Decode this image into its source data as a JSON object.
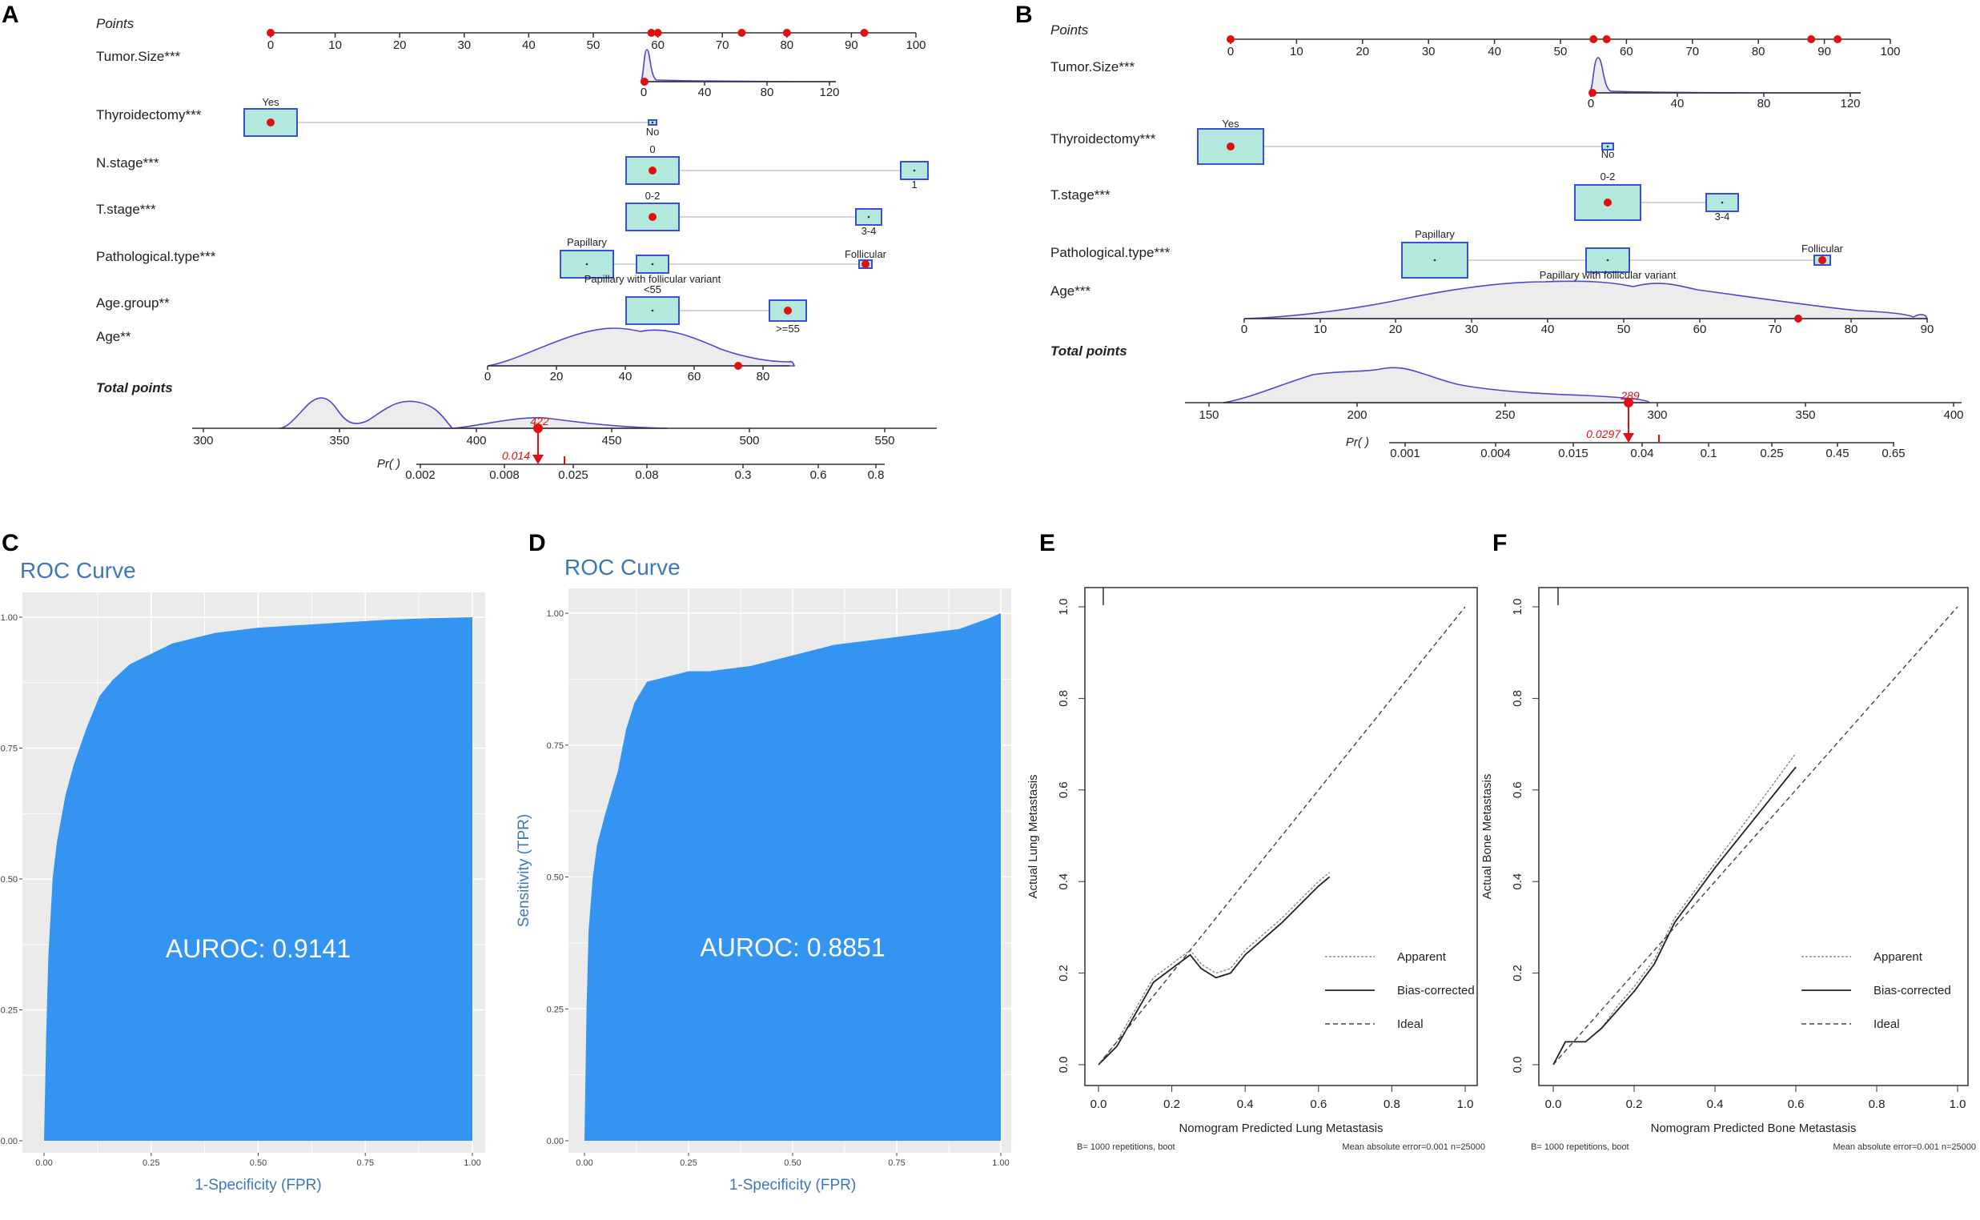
{
  "panels": {
    "A": "A",
    "B": "B",
    "C": "C",
    "D": "D",
    "E": "E",
    "F": "F"
  },
  "chart_data": [
    {
      "panel": "A",
      "type": "nomogram",
      "points_label": "Points",
      "points_ticks": [
        0,
        10,
        20,
        30,
        40,
        50,
        60,
        70,
        80,
        90,
        100
      ],
      "points_markers": [
        0,
        59,
        60,
        73,
        80,
        92
      ],
      "variables": [
        {
          "label": "Tumor.Size***",
          "kind": "continuous",
          "ticks": [
            "0",
            "40",
            "80",
            "120"
          ],
          "marker": "0"
        },
        {
          "label": "Thyroidectomy***",
          "kind": "categorical",
          "levels": [
            "Yes",
            "No"
          ],
          "selected": "Yes"
        },
        {
          "label": "N.stage***",
          "kind": "categorical",
          "levels": [
            "0",
            "1"
          ],
          "selected": "0"
        },
        {
          "label": "T.stage***",
          "kind": "categorical",
          "levels": [
            "0-2",
            "3-4"
          ],
          "selected": "0-2"
        },
        {
          "label": "Pathological.type***",
          "kind": "categorical",
          "levels": [
            "Papillary",
            "Papillary with follicular variant",
            "Follicular"
          ],
          "selected": "Follicular"
        },
        {
          "label": "Age.group**",
          "kind": "categorical",
          "levels": [
            "<55",
            ">=55"
          ],
          "selected": ">=55"
        },
        {
          "label": "Age**",
          "kind": "continuous",
          "ticks": [
            "0",
            "20",
            "40",
            "60",
            "80"
          ],
          "marker": "72"
        }
      ],
      "total_points_label": "Total points",
      "total_ticks": [
        "300",
        "350",
        "400",
        "450",
        "500",
        "550"
      ],
      "total_value": "422",
      "pr_label": "Pr( )",
      "pr_ticks": [
        "0.002",
        "0.008",
        "0.025",
        "0.08",
        "0.3",
        "0.6",
        "0.8"
      ],
      "pr_value": "0.014"
    },
    {
      "panel": "B",
      "type": "nomogram",
      "points_label": "Points",
      "points_ticks": [
        0,
        10,
        20,
        30,
        40,
        50,
        60,
        70,
        80,
        90,
        100
      ],
      "points_markers": [
        0,
        55,
        57,
        88,
        92
      ],
      "variables": [
        {
          "label": "Tumor.Size***",
          "kind": "continuous",
          "ticks": [
            "0",
            "40",
            "80",
            "120"
          ],
          "marker": "0"
        },
        {
          "label": "Thyroidectomy***",
          "kind": "categorical",
          "levels": [
            "Yes",
            "No"
          ],
          "selected": "Yes"
        },
        {
          "label": "T.stage***",
          "kind": "categorical",
          "levels": [
            "0-2",
            "3-4"
          ],
          "selected": "0-2"
        },
        {
          "label": "Pathological.type***",
          "kind": "categorical",
          "levels": [
            "Papillary",
            "Papillary with follicular variant",
            "Follicular"
          ],
          "selected": "Follicular"
        },
        {
          "label": "Age***",
          "kind": "continuous",
          "ticks": [
            "0",
            "10",
            "20",
            "30",
            "40",
            "50",
            "60",
            "70",
            "80",
            "90"
          ],
          "marker": "73"
        }
      ],
      "total_points_label": "Total points",
      "total_ticks": [
        "150",
        "200",
        "250",
        "300",
        "350",
        "400"
      ],
      "total_value": "289",
      "pr_label": "Pr( )",
      "pr_ticks": [
        "0.001",
        "0.004",
        "0.015",
        "0.04",
        "0.1",
        "0.25",
        "0.45",
        "0.65"
      ],
      "pr_value": "0.0297"
    },
    {
      "panel": "C",
      "type": "area",
      "title": "ROC Curve",
      "xlabel": "1-Specificity (FPR)",
      "ylabel": "",
      "xticks": [
        "0.00",
        "0.25",
        "0.50",
        "0.75",
        "1.00"
      ],
      "yticks": [
        "0.00",
        "0.25",
        "0.50",
        "0.75",
        "1.00"
      ],
      "annotation": "AUROC: 0.9141",
      "x": [
        0,
        0.005,
        0.01,
        0.02,
        0.03,
        0.05,
        0.07,
        0.1,
        0.13,
        0.16,
        0.2,
        0.25,
        0.3,
        0.4,
        0.5,
        0.6,
        0.7,
        0.8,
        0.9,
        1.0
      ],
      "y": [
        0,
        0.2,
        0.35,
        0.5,
        0.57,
        0.66,
        0.72,
        0.79,
        0.85,
        0.88,
        0.91,
        0.93,
        0.95,
        0.97,
        0.98,
        0.985,
        0.99,
        0.995,
        0.998,
        1.0
      ]
    },
    {
      "panel": "D",
      "type": "area",
      "title": "ROC Curve",
      "xlabel": "1-Specificity (FPR)",
      "ylabel": "Sensitivity (TPR)",
      "xticks": [
        "0.00",
        "0.25",
        "0.50",
        "0.75",
        "1.00"
      ],
      "yticks": [
        "0.00",
        "0.25",
        "0.50",
        "0.75",
        "1.00"
      ],
      "annotation": "AUROC: 0.8851",
      "x": [
        0,
        0.005,
        0.01,
        0.02,
        0.03,
        0.05,
        0.08,
        0.1,
        0.12,
        0.15,
        0.2,
        0.25,
        0.3,
        0.4,
        0.5,
        0.6,
        0.7,
        0.8,
        0.9,
        0.97,
        1.0
      ],
      "y": [
        0,
        0.25,
        0.4,
        0.5,
        0.56,
        0.62,
        0.7,
        0.78,
        0.83,
        0.87,
        0.88,
        0.89,
        0.89,
        0.9,
        0.92,
        0.94,
        0.95,
        0.96,
        0.97,
        0.99,
        1.0
      ]
    },
    {
      "panel": "E",
      "type": "line",
      "xlabel": "Nomogram Predicted Lung Metastasis",
      "ylabel": "Actual Lung Metastasis",
      "xticks": [
        "0.0",
        "0.2",
        "0.4",
        "0.6",
        "0.8",
        "1.0"
      ],
      "yticks": [
        "0.0",
        "0.2",
        "0.4",
        "0.6",
        "0.8",
        "1.0"
      ],
      "xlim": [
        -0.03,
        1.03
      ],
      "ylim": [
        -0.03,
        1.05
      ],
      "legend": [
        "Apparent",
        "Bias-corrected",
        "Ideal"
      ],
      "footer_left": "B= 1000 repetitions, boot",
      "footer_right": "Mean absolute error=0.001 n=25000",
      "series": [
        {
          "name": "Apparent",
          "x": [
            0,
            0.05,
            0.1,
            0.15,
            0.2,
            0.25,
            0.28,
            0.32,
            0.36,
            0.4,
            0.5,
            0.6,
            0.63
          ],
          "y": [
            0,
            0.05,
            0.12,
            0.19,
            0.22,
            0.25,
            0.22,
            0.2,
            0.21,
            0.25,
            0.32,
            0.4,
            0.42
          ]
        },
        {
          "name": "Bias-corrected",
          "x": [
            0,
            0.05,
            0.1,
            0.15,
            0.2,
            0.25,
            0.28,
            0.32,
            0.36,
            0.4,
            0.5,
            0.6,
            0.63
          ],
          "y": [
            0,
            0.04,
            0.11,
            0.18,
            0.21,
            0.24,
            0.21,
            0.19,
            0.2,
            0.24,
            0.31,
            0.39,
            0.41
          ]
        },
        {
          "name": "Ideal",
          "x": [
            0,
            1
          ],
          "y": [
            0,
            1
          ]
        }
      ]
    },
    {
      "panel": "F",
      "type": "line",
      "xlabel": "Nomogram Predicted Bone Metastasis",
      "ylabel": "Actual Bone Metastasis",
      "xticks": [
        "0.0",
        "0.2",
        "0.4",
        "0.6",
        "0.8",
        "1.0"
      ],
      "yticks": [
        "0.0",
        "0.2",
        "0.4",
        "0.6",
        "0.8",
        "1.0"
      ],
      "xlim": [
        -0.03,
        1.03
      ],
      "ylim": [
        -0.03,
        1.05
      ],
      "legend": [
        "Apparent",
        "Bias-corrected",
        "Ideal"
      ],
      "footer_left": "B= 1000 repetitions, boot",
      "footer_right": "Mean absolute error=0.001 n=25000",
      "series": [
        {
          "name": "Apparent",
          "x": [
            0,
            0.03,
            0.08,
            0.12,
            0.16,
            0.2,
            0.25,
            0.3,
            0.4,
            0.5,
            0.6
          ],
          "y": [
            0,
            0.05,
            0.05,
            0.08,
            0.13,
            0.17,
            0.23,
            0.32,
            0.44,
            0.56,
            0.68
          ]
        },
        {
          "name": "Bias-corrected",
          "x": [
            0,
            0.03,
            0.08,
            0.12,
            0.16,
            0.2,
            0.25,
            0.3,
            0.4,
            0.5,
            0.6
          ],
          "y": [
            0,
            0.05,
            0.05,
            0.08,
            0.12,
            0.16,
            0.22,
            0.31,
            0.43,
            0.54,
            0.65
          ]
        },
        {
          "name": "Ideal",
          "x": [
            0,
            1
          ],
          "y": [
            0,
            1
          ]
        }
      ]
    }
  ]
}
